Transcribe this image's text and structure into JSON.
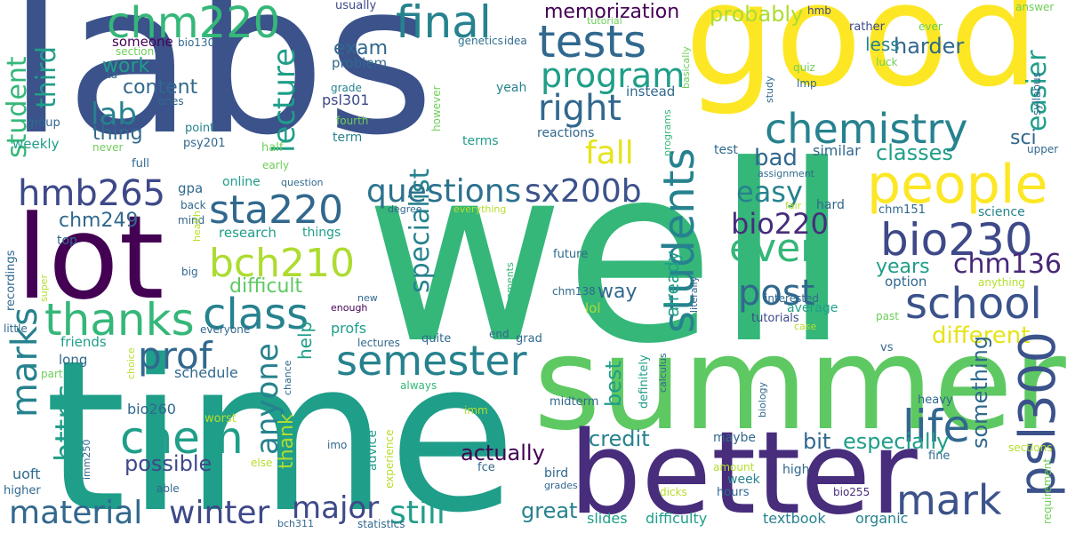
{
  "palette": {
    "c1": "#3b528b",
    "c2": "#2c728e",
    "c3": "#21918c",
    "c4": "#28ae80",
    "c5": "#5ec962",
    "c6": "#addc30",
    "c7": "#e5e419",
    "c8": "#440154",
    "c9": "#472d7b",
    "c10": "#3e4989",
    "c11": "#31688e",
    "c12": "#26828e",
    "c13": "#1f9e89",
    "c14": "#35b779",
    "c15": "#6ece58",
    "c16": "#b5de2b",
    "c17": "#fde725",
    "c18": "#482878"
  },
  "words": {
    "labs": "labs",
    "well": "well",
    "good": "good",
    "time": "time",
    "summer": "summer",
    "better": "better",
    "lot": "lot",
    "people": "people",
    "tests": "tests",
    "chemistry": "chemistry",
    "chm220": "chm220",
    "final": "final",
    "program": "program",
    "right": "right",
    "students": "students",
    "school": "school",
    "bio230": "bio230",
    "sta220": "sta220",
    "hmb265": "hmb265",
    "bch210": "bch210",
    "class": "class",
    "thanks": "thanks",
    "semester": "semester",
    "chem": "chem",
    "psl300": "psl300",
    "life": "life",
    "mark": "mark",
    "questions": "questions",
    "sx200b": "sx200b",
    "even": "even",
    "post": "post",
    "chm136": "chm136",
    "marks": "marks",
    "lab": "lab",
    "prof": "prof",
    "material": "material",
    "winter": "winter",
    "major": "major",
    "still": "still",
    "easy": "easy",
    "bio220": "bio220",
    "anyone": "anyone",
    "https": "https",
    "fall": "fall",
    "lecture": "lecture",
    "third": "third",
    "student": "student",
    "exam": "exam",
    "easier": "easier",
    "harder": "harder",
    "probably": "probably",
    "memorization": "memorization",
    "classes": "classes",
    "bad": "bad",
    "different": "different",
    "years": "years",
    "specialist": "specialist",
    "actually": "actually",
    "credit": "credit",
    "great": "great",
    "difficult": "difficult",
    "especially": "especially",
    "something": "something",
    "bit": "bit",
    "possible": "possible",
    "best": "best",
    "thank": "thank",
    "help": "help",
    "chm249": "chm249",
    "content": "content",
    "work": "work",
    "thing": "thing",
    "less": "less",
    "sci": "sci",
    "way": "way",
    "already": "already",
    "someone": "someone",
    "bio130": "bio130",
    "usually": "usually",
    "hmb": "hmb",
    "answer": "answer",
    "ever": "ever",
    "rather": "rather",
    "tutorial": "tutorial",
    "genetics": "genetics",
    "idea": "idea",
    "section": "section",
    "ta": "ta",
    "ones": "ones",
    "group": "group",
    "weekly": "weekly",
    "never": "never",
    "full": "full",
    "point": "point",
    "psy201": "psy201",
    "half": "half",
    "early": "early",
    "psl301": "psl301",
    "fourth": "fourth",
    "term": "term",
    "grade": "grade",
    "problem": "problem",
    "however": "however",
    "yeah": "yeah",
    "terms": "terms",
    "reactions": "reactions",
    "instead": "instead",
    "programs": "programs",
    "basically": "basically",
    "quiz": "quiz",
    "lmp": "lmp",
    "luck": "luck",
    "study": "study",
    "syllabus": "syllabus",
    "upper": "upper",
    "test": "test",
    "similar": "similar",
    "assignment": "assignment",
    "gpa": "gpa",
    "back": "back",
    "mind": "mind",
    "online": "online",
    "question": "question",
    "degree": "degree",
    "everything": "everything",
    "hard": "hard",
    "fair": "fair",
    "chm151": "chm151",
    "science": "science",
    "research": "research",
    "things": "things",
    "top": "top",
    "health": "health",
    "big": "big",
    "future": "future",
    "chm138": "chm138",
    "interested": "interested",
    "option": "option",
    "anything": "anything",
    "average": "average",
    "tutorials": "tutorials",
    "case": "case",
    "past": "past",
    "lol": "lol",
    "literally": "literally",
    "super": "super",
    "new": "new",
    "enough": "enough",
    "profs": "profs",
    "recordings": "recordings",
    "little": "little",
    "everyone": "everyone",
    "friends": "friends",
    "long": "long",
    "quite": "quite",
    "lectures": "lectures",
    "grad": "grad",
    "end": "end",
    "assignments": "assignments",
    "choice": "choice",
    "chance": "chance",
    "schedule": "schedule",
    "part": "part",
    "always": "always",
    "vs": "vs",
    "calculus": "calculus",
    "definitely": "definitely",
    "biology": "biology",
    "heavy": "heavy",
    "bio260": "bio260",
    "worst": "worst",
    "midterm": "midterm",
    "imm": "imm",
    "advice": "advice",
    "experience": "experience",
    "imo": "imo",
    "maybe": "maybe",
    "imm250": "imm250",
    "else": "else",
    "uoft": "uoft",
    "higher": "higher",
    "able": "able",
    "fce": "fce",
    "bird": "bird",
    "grades": "grades",
    "slides": "slides",
    "difficulty": "difficulty",
    "week": "week",
    "hours": "hours",
    "amount": "amount",
    "dicks": "dicks",
    "high": "high",
    "textbook": "textbook",
    "organic": "organic",
    "bio255": "bio255",
    "fine": "fine",
    "sections": "sections",
    "requirement": "requirement",
    "statistics": "statistics",
    "bch311": "bch311"
  }
}
